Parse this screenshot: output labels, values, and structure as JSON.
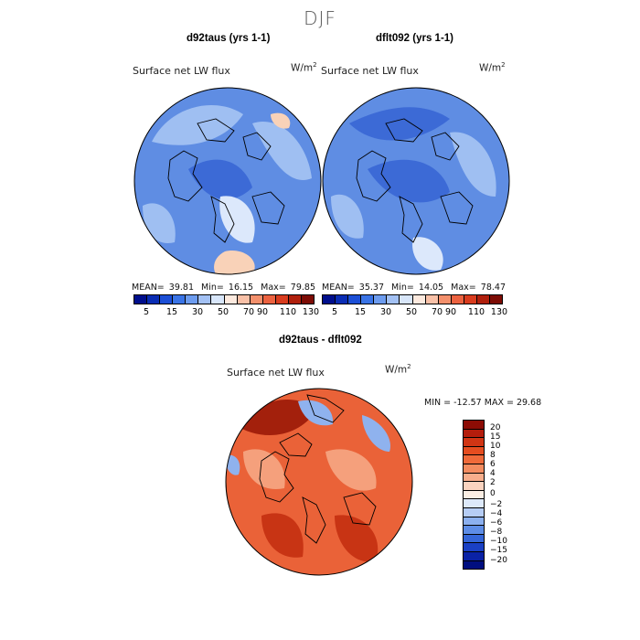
{
  "season": "DJF",
  "panels": [
    {
      "title": "d92taus (yrs 1-1)",
      "variable": "Surface net LW flux",
      "units_base": "W/m",
      "units_exp": "2",
      "stats": {
        "mean_label": "MEAN=",
        "mean": "39.81",
        "min_label": "Min=",
        "min": "16.15",
        "max_label": "Max=",
        "max": "79.85"
      }
    },
    {
      "title": "dflt092 (yrs 1-1)",
      "variable": "Surface net LW flux",
      "units_base": "W/m",
      "units_exp": "2",
      "stats": {
        "mean_label": "MEAN=",
        "mean": "35.37",
        "min_label": "Min=",
        "min": "14.05",
        "max_label": "Max=",
        "max": "78.47"
      }
    }
  ],
  "abs_colorbar": {
    "labels": [
      "5",
      "15",
      "30",
      "50",
      "70",
      "90",
      "110",
      "130"
    ],
    "colors": [
      "#000e8c",
      "#0a2db4",
      "#1c4fd6",
      "#3a74e6",
      "#6d9cef",
      "#a3c1f4",
      "#d8e6fa",
      "#fdeadf",
      "#f9c1a8",
      "#f3906c",
      "#ec6240",
      "#d93c1e",
      "#b0200d",
      "#7d0c05"
    ]
  },
  "diff": {
    "title": "d92taus - dflt092",
    "variable": "Surface net LW flux",
    "units_base": "W/m",
    "units_exp": "2",
    "minmax": "MIN = -12.57 MAX =   29.68",
    "colorbar_labels": [
      "20",
      "15",
      "10",
      "8",
      "6",
      "4",
      "2",
      "0",
      "−2",
      "−4",
      "−6",
      "−8",
      "−10",
      "−15",
      "−20"
    ],
    "colors": [
      "#8c0c05",
      "#b41d0c",
      "#d13514",
      "#e54d20",
      "#ef6a3a",
      "#f38c60",
      "#f7ae8c",
      "#fad3bf",
      "#fbeee4",
      "#dde9fa",
      "#b6cdf5",
      "#8cb0ef",
      "#5e8de6",
      "#3566d8",
      "#1a40c4",
      "#0a22a6",
      "#000e80"
    ]
  },
  "map_colors": {
    "abs_bg": "#5f8de3",
    "abs_dark": "#3c6ad6",
    "abs_light": "#9fbff2",
    "abs_pale": "#dce8fb",
    "abs_warm": "#f9d2b8",
    "diff_bg": "#ea6238",
    "diff_dark": "#c83414",
    "diff_light": "#f5a07c",
    "diff_blue": "#8fb2ee",
    "diff_deep": "#a3200c"
  }
}
